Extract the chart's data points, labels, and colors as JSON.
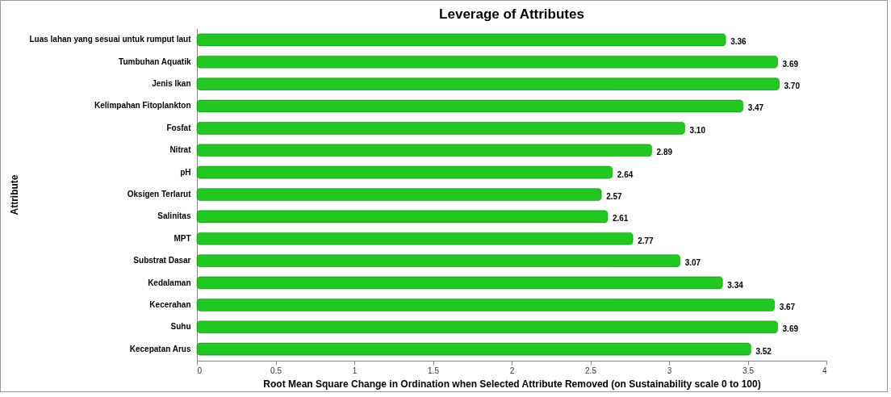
{
  "chart_data": {
    "type": "bar",
    "orientation": "horizontal",
    "title": "Leverage of Attributes",
    "xlabel": "Root Mean Square Change in Ordination when Selected Attribute Removed (on Sustainability scale 0 to 100)",
    "ylabel": "Attribute",
    "categories": [
      "Luas lahan yang sesuai untuk rumput laut",
      "Tumbuhan Aquatik",
      "Jenis Ikan",
      "Kelimpahan Fitoplankton",
      "Fosfat",
      "Nitrat",
      "pH",
      "Oksigen Terlarut",
      "Salinitas",
      "MPT",
      "Substrat Dasar",
      "Kedalaman",
      "Kecerahan",
      "Suhu",
      "Kecepatan Arus"
    ],
    "values": [
      3.36,
      3.69,
      3.7,
      3.47,
      3.1,
      2.89,
      2.64,
      2.57,
      2.61,
      2.77,
      3.07,
      3.34,
      3.67,
      3.69,
      3.52
    ],
    "value_labels": [
      "3.36",
      "3.69",
      "3.70",
      "3.47",
      "3.10",
      "2.89",
      "2.64",
      "2.57",
      "2.61",
      "2.77",
      "3.07",
      "3.34",
      "3.67",
      "3.69",
      "3.52"
    ],
    "color": "#22c722",
    "xlim": [
      0,
      4
    ],
    "xticks": [
      0,
      0.5,
      1,
      1.5,
      2,
      2.5,
      3,
      3.5,
      4
    ],
    "grid": false
  }
}
